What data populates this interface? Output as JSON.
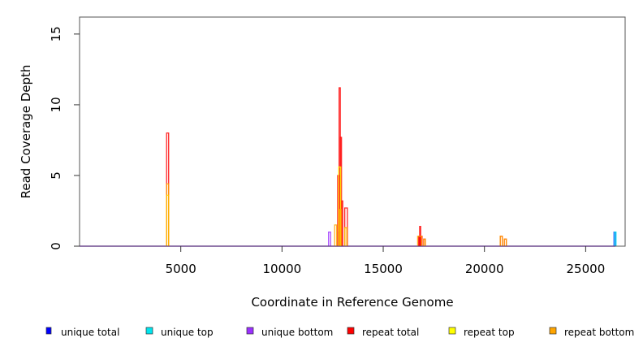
{
  "chart_data": {
    "type": "line",
    "title": "",
    "xlabel": "Coordinate in Reference Genome",
    "ylabel": "Read Coverage Depth",
    "xlim": [
      0,
      26950
    ],
    "ylim": [
      0,
      16.2
    ],
    "xticks": [
      5000,
      10000,
      15000,
      20000,
      25000
    ],
    "yticks": [
      0,
      5,
      10,
      15
    ],
    "legend_placement": "bottom",
    "series": [
      {
        "name": "unique total",
        "color": "#0000ff",
        "bins": [
          [
            26400,
            26480,
            1.0
          ]
        ]
      },
      {
        "name": "unique top",
        "color": "#00e5ee",
        "bins": [
          [
            26420,
            26500,
            1.0
          ]
        ]
      },
      {
        "name": "unique bottom",
        "color": "#9b30ff",
        "bins": [
          [
            12300,
            12400,
            1.0
          ],
          [
            12800,
            12900,
            1.0
          ]
        ]
      },
      {
        "name": "repeat total",
        "color": "#ff0000",
        "bins": [
          [
            4300,
            4400,
            8.0
          ],
          [
            12750,
            12820,
            5.0
          ],
          [
            12820,
            12880,
            11.2
          ],
          [
            12880,
            12940,
            7.7
          ],
          [
            12940,
            13000,
            3.2
          ],
          [
            13100,
            13230,
            2.7
          ],
          [
            16750,
            16800,
            0.7
          ],
          [
            16800,
            16850,
            1.4
          ],
          [
            16850,
            16920,
            0.7
          ],
          [
            17000,
            17080,
            0.5
          ],
          [
            20780,
            20880,
            0.7
          ],
          [
            20980,
            21080,
            0.5
          ]
        ]
      },
      {
        "name": "repeat top",
        "color": "#ffff00",
        "bins": [
          [
            4300,
            4400,
            3.6
          ],
          [
            12800,
            12900,
            5.6
          ],
          [
            13100,
            13200,
            1.3
          ]
        ]
      },
      {
        "name": "repeat bottom",
        "color": "#ffa500",
        "bins": [
          [
            4300,
            4400,
            4.4
          ],
          [
            12600,
            12700,
            1.5
          ],
          [
            12850,
            12920,
            2.6
          ],
          [
            13100,
            13200,
            1.3
          ],
          [
            16700,
            16900,
            0.7
          ],
          [
            17000,
            17080,
            0.5
          ],
          [
            20780,
            20880,
            0.7
          ],
          [
            20980,
            21080,
            0.5
          ]
        ]
      }
    ]
  }
}
